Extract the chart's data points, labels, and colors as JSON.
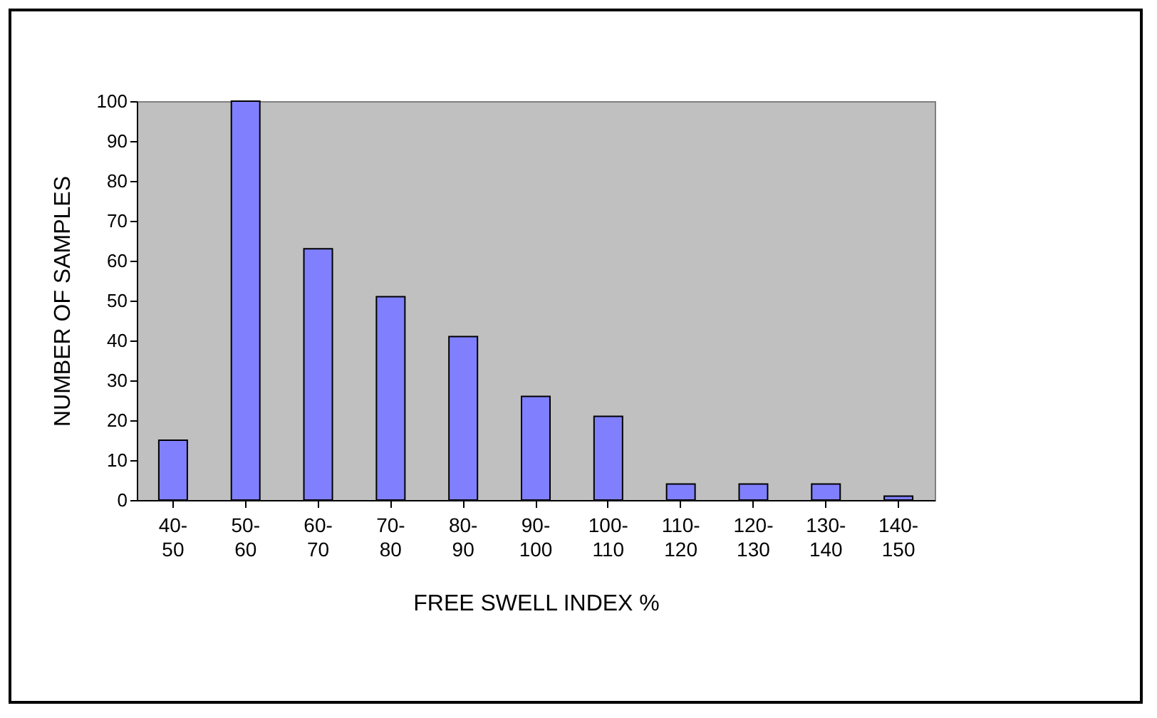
{
  "chart_data": {
    "type": "bar",
    "xlabel": "FREE SWELL INDEX %",
    "ylabel": "NUMBER OF SAMPLES",
    "categories": [
      "40-50",
      "50-60",
      "60-70",
      "70-80",
      "80-90",
      "90-100",
      "100-110",
      "110-120",
      "120-130",
      "130-140",
      "140-150"
    ],
    "values": [
      15,
      100,
      63,
      51,
      41,
      26,
      21,
      4,
      4,
      4,
      1
    ],
    "color": "#8080ff",
    "ylim": [
      0,
      100
    ],
    "yticks": [
      0,
      10,
      20,
      30,
      40,
      50,
      60,
      70,
      80,
      90,
      100
    ],
    "grid": false
  }
}
